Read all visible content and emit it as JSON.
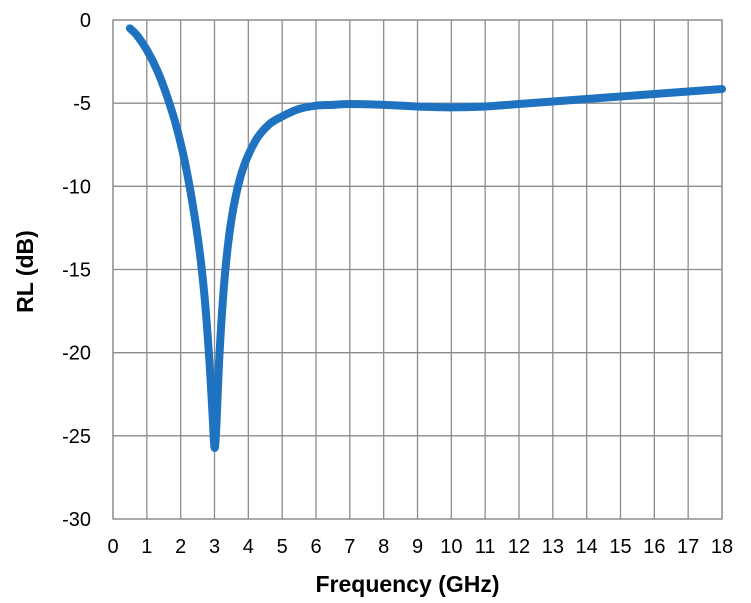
{
  "chart_data": {
    "type": "line",
    "title": "",
    "xlabel": "Frequency (GHz)",
    "ylabel": "RL (dB)",
    "xlim": [
      0,
      18
    ],
    "ylim": [
      -30,
      0
    ],
    "x_ticks": [
      0,
      1,
      2,
      3,
      4,
      5,
      6,
      7,
      8,
      9,
      10,
      11,
      12,
      13,
      14,
      15,
      16,
      17,
      18
    ],
    "y_ticks": [
      0,
      -5,
      -10,
      -15,
      -20,
      -25,
      -30
    ],
    "grid": true,
    "legend": "none",
    "series": [
      {
        "color": "#1f72c0",
        "x": [
          0.5,
          0.7,
          1.0,
          1.3,
          1.6,
          1.9,
          2.2,
          2.5,
          2.7,
          2.85,
          2.95,
          3.0,
          3.05,
          3.15,
          3.3,
          3.5,
          3.8,
          4.2,
          4.6,
          5.0,
          5.5,
          6.0,
          6.5,
          7.0,
          8.0,
          9.0,
          10.0,
          11.0,
          12.0,
          13.0,
          14.0,
          15.0,
          16.0,
          17.0,
          18.0
        ],
        "y": [
          -0.5,
          -0.9,
          -1.8,
          -3.0,
          -4.6,
          -6.6,
          -9.3,
          -13.0,
          -16.5,
          -20.5,
          -24.0,
          -25.7,
          -24.6,
          -20.0,
          -15.5,
          -12.0,
          -9.2,
          -7.3,
          -6.3,
          -5.8,
          -5.35,
          -5.15,
          -5.1,
          -5.05,
          -5.1,
          -5.2,
          -5.25,
          -5.2,
          -5.05,
          -4.9,
          -4.75,
          -4.6,
          -4.45,
          -4.3,
          -4.15
        ]
      }
    ]
  }
}
